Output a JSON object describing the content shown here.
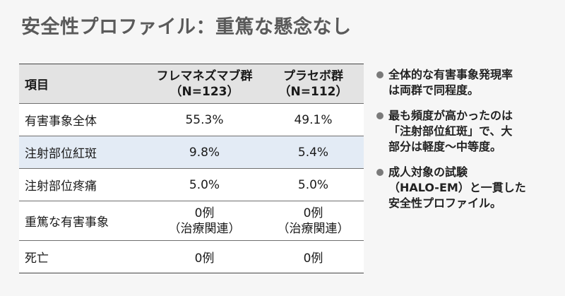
{
  "title": "安全性プロファイル：重篤な懸念なし",
  "table": {
    "header": {
      "item": "項目",
      "col_a_line1": "フレマネズマブ群",
      "col_a_line2": "（N=123）",
      "col_b_line1": "プラセボ群",
      "col_b_line2": "（N=112）"
    },
    "rows": [
      {
        "item": "有害事象全体",
        "a1": "55.3%",
        "a2": "",
        "b1": "49.1%",
        "b2": ""
      },
      {
        "item": "注射部位紅斑",
        "a1": "9.8%",
        "a2": "",
        "b1": "5.4%",
        "b2": ""
      },
      {
        "item": "注射部位疼痛",
        "a1": "5.0%",
        "a2": "",
        "b1": "5.0%",
        "b2": ""
      },
      {
        "item": "重篤な有害事象",
        "a1": "0例",
        "a2": "（治療関連）",
        "b1": "0例",
        "b2": "（治療関連）"
      },
      {
        "item": "死亡",
        "a1": "0例",
        "a2": "",
        "b1": "0例",
        "b2": ""
      }
    ]
  },
  "bullets": [
    {
      "lines": [
        "全体的な有害事象発現率",
        "は両群で同程度。"
      ]
    },
    {
      "lines": [
        "最も頻度が高かったのは",
        "「注射部位紅斑」で、大",
        "部分は軽度〜中等度。"
      ]
    },
    {
      "lines": [
        "成人対象の試験",
        "（HALO-EM）と一貫した",
        "安全性プロファイル。"
      ]
    }
  ]
}
